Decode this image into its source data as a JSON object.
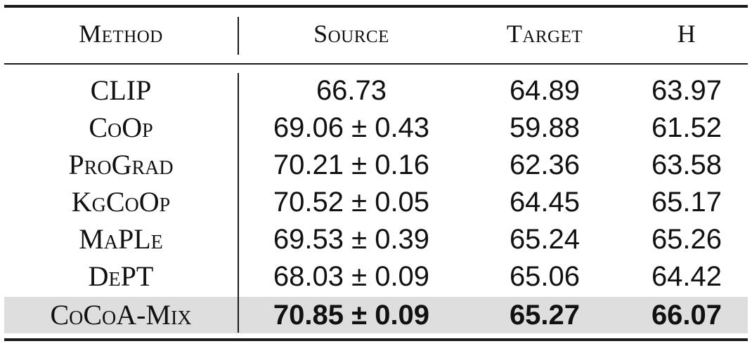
{
  "table": {
    "headers": {
      "method": "Method",
      "source": "Source",
      "target": "Target",
      "h": "H"
    },
    "rows": [
      {
        "method": "CLIP",
        "source": "66.73",
        "target": "64.89",
        "h": "63.97"
      },
      {
        "method": "CoOp",
        "source": "69.06 ± 0.43",
        "target": "59.88",
        "h": "61.52"
      },
      {
        "method": "ProGrad",
        "source": "70.21 ± 0.16",
        "target": "62.36",
        "h": "63.58"
      },
      {
        "method": "KgCoOp",
        "source": "70.52 ± 0.05",
        "target": "64.45",
        "h": "65.17"
      },
      {
        "method": "MaPLe",
        "source": "69.53 ± 0.39",
        "target": "65.24",
        "h": "65.26"
      },
      {
        "method": "DePT",
        "source": "68.03 ± 0.09",
        "target": "65.06",
        "h": "64.42"
      },
      {
        "method": "CoCoA-Mix",
        "source": "70.85 ± 0.09",
        "target": "65.27",
        "h": "66.07"
      }
    ]
  }
}
